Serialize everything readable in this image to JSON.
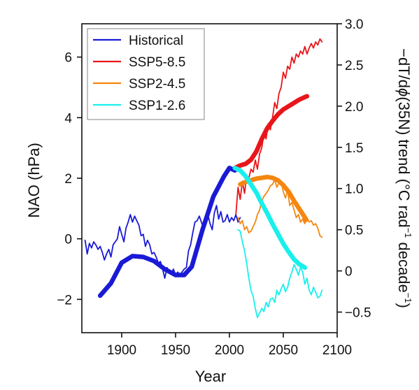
{
  "chart_data": {
    "type": "line",
    "xlabel": "Year",
    "ylabel_left": "NAO (hPa)",
    "ylabel_right_parts": [
      "−dT/d",
      "ϕ",
      "(35N) trend (°C rad",
      "−1",
      " decade",
      "−1",
      ")"
    ],
    "xlim": [
      1863,
      2100
    ],
    "ylim_left": [
      -3.1,
      7.1
    ],
    "ylim_right": [
      -0.75,
      3.0
    ],
    "x_ticks": [
      1900,
      1950,
      2000,
      2050,
      2100
    ],
    "x_tick_labels": [
      "1900",
      "1950",
      "2000",
      "2050",
      "2100"
    ],
    "y_left_ticks": [
      6,
      4,
      2,
      0,
      -2
    ],
    "y_left_tick_labels": [
      "6",
      "4",
      "2",
      "0",
      "−2"
    ],
    "y_right_ticks": [
      3.0,
      2.5,
      2.0,
      1.5,
      1.0,
      0.5,
      0,
      -0.5
    ],
    "y_right_tick_labels": [
      "3.0",
      "2.5",
      "2.0",
      "1.5",
      "1.0",
      "0.5",
      "0",
      "−0.5"
    ],
    "grid": false,
    "legend_position": "top-left",
    "series": [
      {
        "name": "Historical",
        "color": "#1a1ad6",
        "axis": "left",
        "style": "thin",
        "points": [
          [
            1866,
            -0.05
          ],
          [
            1868,
            -0.5
          ],
          [
            1870,
            -0.15
          ],
          [
            1872,
            -0.3
          ],
          [
            1874,
            -0.1
          ],
          [
            1876,
            -0.2
          ],
          [
            1878,
            -0.35
          ],
          [
            1880,
            -0.25
          ],
          [
            1882,
            -0.45
          ],
          [
            1884,
            -0.7
          ],
          [
            1886,
            -0.5
          ],
          [
            1888,
            -0.35
          ],
          [
            1890,
            -0.6
          ],
          [
            1892,
            -0.2
          ],
          [
            1894,
            -0.1
          ],
          [
            1896,
            0.0
          ],
          [
            1898,
            0.4
          ],
          [
            1900,
            0.15
          ],
          [
            1902,
            -0.1
          ],
          [
            1904,
            0.35
          ],
          [
            1906,
            0.55
          ],
          [
            1908,
            0.8
          ],
          [
            1910,
            0.55
          ],
          [
            1912,
            0.75
          ],
          [
            1914,
            0.6
          ],
          [
            1916,
            0.45
          ],
          [
            1918,
            0.1
          ],
          [
            1920,
            0.15
          ],
          [
            1922,
            -0.25
          ],
          [
            1924,
            -0.05
          ],
          [
            1926,
            -0.2
          ],
          [
            1928,
            -0.5
          ],
          [
            1930,
            -0.45
          ],
          [
            1932,
            -0.6
          ],
          [
            1934,
            -0.8
          ],
          [
            1936,
            -0.75
          ],
          [
            1938,
            -1.0
          ],
          [
            1940,
            -1.3
          ],
          [
            1942,
            -0.95
          ],
          [
            1944,
            -1.05
          ],
          [
            1946,
            -1.15
          ],
          [
            1948,
            -1.0
          ],
          [
            1950,
            -1.2
          ],
          [
            1952,
            -1.1
          ],
          [
            1954,
            -1.2
          ],
          [
            1956,
            -1.1
          ],
          [
            1958,
            -1.0
          ],
          [
            1960,
            -0.95
          ],
          [
            1962,
            -0.4
          ],
          [
            1964,
            -0.2
          ],
          [
            1966,
            0.2
          ],
          [
            1968,
            0.55
          ],
          [
            1970,
            0.6
          ],
          [
            1972,
            0.75
          ],
          [
            1974,
            0.55
          ],
          [
            1976,
            0.35
          ],
          [
            1978,
            0.7
          ],
          [
            1980,
            0.8
          ],
          [
            1982,
            0.5
          ],
          [
            1984,
            0.3
          ],
          [
            1986,
            0.85
          ],
          [
            1988,
            1.1
          ],
          [
            1990,
            0.65
          ],
          [
            1992,
            0.9
          ],
          [
            1994,
            0.55
          ],
          [
            1996,
            0.6
          ],
          [
            1998,
            0.8
          ],
          [
            2000,
            0.55
          ],
          [
            2002,
            0.7
          ],
          [
            2004,
            0.6
          ],
          [
            2006,
            0.8
          ],
          [
            2008,
            0.55
          ],
          [
            2010,
            0.7
          ]
        ]
      },
      {
        "name": "Historical",
        "color": "#1a1ad6",
        "axis": "right",
        "style": "thick",
        "points": [
          [
            1880,
            -0.3
          ],
          [
            1890,
            -0.15
          ],
          [
            1900,
            0.1
          ],
          [
            1910,
            0.18
          ],
          [
            1920,
            0.17
          ],
          [
            1930,
            0.12
          ],
          [
            1940,
            0.02
          ],
          [
            1950,
            -0.05
          ],
          [
            1958,
            -0.05
          ],
          [
            1965,
            0.05
          ],
          [
            1975,
            0.5
          ],
          [
            1985,
            0.9
          ],
          [
            1995,
            1.15
          ],
          [
            2000,
            1.25
          ],
          [
            2005,
            1.22
          ]
        ]
      },
      {
        "name": "SSP5-8.5",
        "color": "#e8161a",
        "axis": "left",
        "style": "thin",
        "points": [
          [
            2006,
            0.8
          ],
          [
            2008,
            1.7
          ],
          [
            2010,
            1.3
          ],
          [
            2012,
            1.9
          ],
          [
            2014,
            1.5
          ],
          [
            2016,
            2.1
          ],
          [
            2018,
            2.0
          ],
          [
            2020,
            2.3
          ],
          [
            2022,
            2.2
          ],
          [
            2024,
            2.6
          ],
          [
            2026,
            2.3
          ],
          [
            2028,
            2.8
          ],
          [
            2030,
            3.0
          ],
          [
            2032,
            3.5
          ],
          [
            2034,
            3.3
          ],
          [
            2036,
            3.8
          ],
          [
            2038,
            3.6
          ],
          [
            2040,
            4.0
          ],
          [
            2042,
            4.5
          ],
          [
            2044,
            4.3
          ],
          [
            2046,
            4.8
          ],
          [
            2048,
            5.0
          ],
          [
            2050,
            5.5
          ],
          [
            2052,
            5.3
          ],
          [
            2054,
            5.7
          ],
          [
            2056,
            5.6
          ],
          [
            2058,
            6.0
          ],
          [
            2060,
            5.8
          ],
          [
            2062,
            6.1
          ],
          [
            2064,
            6.0
          ],
          [
            2066,
            6.2
          ],
          [
            2068,
            6.1
          ],
          [
            2070,
            6.35
          ],
          [
            2072,
            6.1
          ],
          [
            2074,
            6.3
          ],
          [
            2076,
            6.45
          ],
          [
            2078,
            6.3
          ],
          [
            2080,
            6.5
          ],
          [
            2082,
            6.4
          ],
          [
            2084,
            6.6
          ],
          [
            2086,
            6.5
          ]
        ]
      },
      {
        "name": "SSP5-8.5",
        "color": "#e8161a",
        "axis": "right",
        "style": "thick",
        "points": [
          [
            2005,
            1.25
          ],
          [
            2010,
            1.28
          ],
          [
            2015,
            1.3
          ],
          [
            2020,
            1.35
          ],
          [
            2025,
            1.45
          ],
          [
            2030,
            1.6
          ],
          [
            2035,
            1.73
          ],
          [
            2040,
            1.82
          ],
          [
            2045,
            1.9
          ],
          [
            2050,
            1.96
          ],
          [
            2055,
            2.0
          ],
          [
            2060,
            2.04
          ],
          [
            2065,
            2.08
          ],
          [
            2070,
            2.11
          ],
          [
            2072,
            2.12
          ]
        ]
      },
      {
        "name": "SSP2-4.5",
        "color": "#f5860f",
        "axis": "left",
        "style": "thin",
        "points": [
          [
            2008,
            0.7
          ],
          [
            2010,
            0.5
          ],
          [
            2012,
            0.6
          ],
          [
            2014,
            0.3
          ],
          [
            2016,
            0.4
          ],
          [
            2018,
            0.2
          ],
          [
            2020,
            0.25
          ],
          [
            2022,
            0.4
          ],
          [
            2024,
            0.55
          ],
          [
            2026,
            0.8
          ],
          [
            2028,
            0.95
          ],
          [
            2030,
            1.25
          ],
          [
            2032,
            1.4
          ],
          [
            2034,
            1.5
          ],
          [
            2036,
            1.6
          ],
          [
            2038,
            1.75
          ],
          [
            2040,
            1.8
          ],
          [
            2042,
            1.95
          ],
          [
            2044,
            1.7
          ],
          [
            2046,
            1.85
          ],
          [
            2048,
            1.9
          ],
          [
            2050,
            1.55
          ],
          [
            2052,
            1.35
          ],
          [
            2054,
            1.6
          ],
          [
            2056,
            1.1
          ],
          [
            2058,
            1.2
          ],
          [
            2060,
            0.95
          ],
          [
            2062,
            0.7
          ],
          [
            2064,
            0.8
          ],
          [
            2066,
            0.55
          ],
          [
            2068,
            0.65
          ],
          [
            2070,
            0.5
          ],
          [
            2072,
            0.7
          ],
          [
            2074,
            0.55
          ],
          [
            2076,
            0.6
          ],
          [
            2078,
            0.45
          ],
          [
            2080,
            0.5
          ],
          [
            2082,
            0.35
          ],
          [
            2084,
            0.1
          ],
          [
            2086,
            0.05
          ]
        ]
      },
      {
        "name": "SSP2-4.5",
        "color": "#f5860f",
        "axis": "right",
        "style": "thick",
        "points": [
          [
            2010,
            1.05
          ],
          [
            2015,
            1.08
          ],
          [
            2020,
            1.1
          ],
          [
            2025,
            1.12
          ],
          [
            2030,
            1.13
          ],
          [
            2035,
            1.14
          ],
          [
            2040,
            1.13
          ],
          [
            2045,
            1.1
          ],
          [
            2050,
            1.04
          ],
          [
            2055,
            0.96
          ],
          [
            2060,
            0.85
          ],
          [
            2065,
            0.75
          ],
          [
            2070,
            0.65
          ],
          [
            2071,
            0.62
          ]
        ]
      },
      {
        "name": "SSP1-2.6",
        "color": "#18f0ec",
        "axis": "left",
        "style": "thin",
        "points": [
          [
            2008,
            0.3
          ],
          [
            2010,
            0.25
          ],
          [
            2012,
            -0.1
          ],
          [
            2014,
            -0.4
          ],
          [
            2016,
            -0.8
          ],
          [
            2018,
            -1.3
          ],
          [
            2020,
            -1.7
          ],
          [
            2022,
            -1.9
          ],
          [
            2024,
            -2.3
          ],
          [
            2026,
            -2.6
          ],
          [
            2028,
            -2.45
          ],
          [
            2030,
            -2.3
          ],
          [
            2032,
            -2.4
          ],
          [
            2034,
            -2.1
          ],
          [
            2036,
            -2.25
          ],
          [
            2038,
            -2.0
          ],
          [
            2040,
            -1.95
          ],
          [
            2042,
            -2.1
          ],
          [
            2044,
            -1.7
          ],
          [
            2046,
            -1.85
          ],
          [
            2048,
            -1.65
          ],
          [
            2050,
            -1.5
          ],
          [
            2052,
            -1.75
          ],
          [
            2054,
            -1.6
          ],
          [
            2056,
            -1.3
          ],
          [
            2058,
            -1.1
          ],
          [
            2060,
            -0.85
          ],
          [
            2062,
            -1.0
          ],
          [
            2064,
            -1.2
          ],
          [
            2066,
            -0.95
          ],
          [
            2068,
            -1.1
          ],
          [
            2070,
            -1.5
          ],
          [
            2072,
            -1.3
          ],
          [
            2074,
            -1.7
          ],
          [
            2076,
            -1.85
          ],
          [
            2078,
            -1.6
          ],
          [
            2080,
            -1.75
          ],
          [
            2082,
            -1.95
          ],
          [
            2084,
            -1.9
          ],
          [
            2086,
            -1.7
          ]
        ]
      },
      {
        "name": "SSP1-2.6",
        "color": "#18f0ec",
        "axis": "right",
        "style": "thick",
        "points": [
          [
            2005,
            1.25
          ],
          [
            2010,
            1.22
          ],
          [
            2015,
            1.15
          ],
          [
            2020,
            1.05
          ],
          [
            2025,
            0.95
          ],
          [
            2030,
            0.82
          ],
          [
            2035,
            0.7
          ],
          [
            2040,
            0.57
          ],
          [
            2045,
            0.45
          ],
          [
            2050,
            0.33
          ],
          [
            2055,
            0.23
          ],
          [
            2060,
            0.14
          ],
          [
            2065,
            0.08
          ],
          [
            2070,
            0.04
          ]
        ]
      }
    ]
  }
}
